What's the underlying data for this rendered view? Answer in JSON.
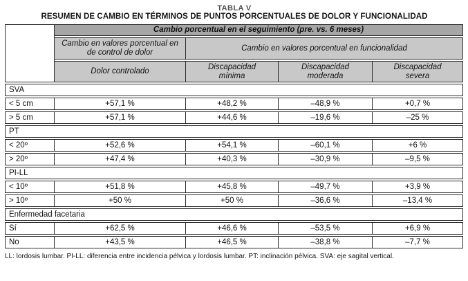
{
  "title": "TABLA V",
  "subtitle": "RESUMEN DE CAMBIO EN TÉRMINOS DE PUNTOS PORCENTUALES DE DOLOR Y FUNCIONALIDAD",
  "colors": {
    "header_dark": "#a6a6a6",
    "header_light": "#c8c8c8",
    "border": "#2b2b2b"
  },
  "table": {
    "headers": {
      "top": "Cambio porcentual en el seguimiento (pre. vs. 6 meses)",
      "pain_group": "Cambio en valores porcentual en de control de dolor",
      "function_group": "Cambio en valores porcentual en  funcionalidad",
      "columns": [
        "Dolor controlado",
        "Discapacidad mínima",
        "Discapacidad moderada",
        "Discapacidad severa"
      ]
    },
    "sections": [
      {
        "label": "SVA",
        "rows": [
          [
            "< 5 cm",
            "+57,1 %",
            "+48,2 %",
            "–48,9 %",
            "+0,7 %"
          ],
          [
            "> 5 cm",
            "+57,1 %",
            "+44,6 %",
            "–19,6 %",
            "–25 %"
          ]
        ]
      },
      {
        "label": "PT",
        "rows": [
          [
            "< 20º",
            "+52,6 %",
            "+54,1 %",
            "–60,1 %",
            "+6 %"
          ],
          [
            "> 20º",
            "+47,4 %",
            "+40,3 %",
            "–30,9 %",
            "–9,5 %"
          ]
        ]
      },
      {
        "label": "PI-LL",
        "rows": [
          [
            "< 10º",
            "+51,8 %",
            "+45,8 %",
            "–49,7 %",
            "+3,9 %"
          ],
          [
            "> 10º",
            "+50 %",
            "+50 %",
            "–36,6 %",
            "–13,4 %"
          ]
        ]
      },
      {
        "label": "Enfermedad facetaria",
        "rows": [
          [
            "Sí",
            "+62,5 %",
            "+46,6 %",
            "–53,5 %",
            "+6,9 %"
          ],
          [
            "No",
            "+43,5 %",
            "+46,5 %",
            "–38,8 %",
            "–7,7 %"
          ]
        ]
      }
    ]
  },
  "footnote": "LL: lordosis lumbar. PI-LL: diferencia entre incidencia pélvica y lordosis lumbar. PT: inclinación pélvica. SVA: eje sagital vertical."
}
